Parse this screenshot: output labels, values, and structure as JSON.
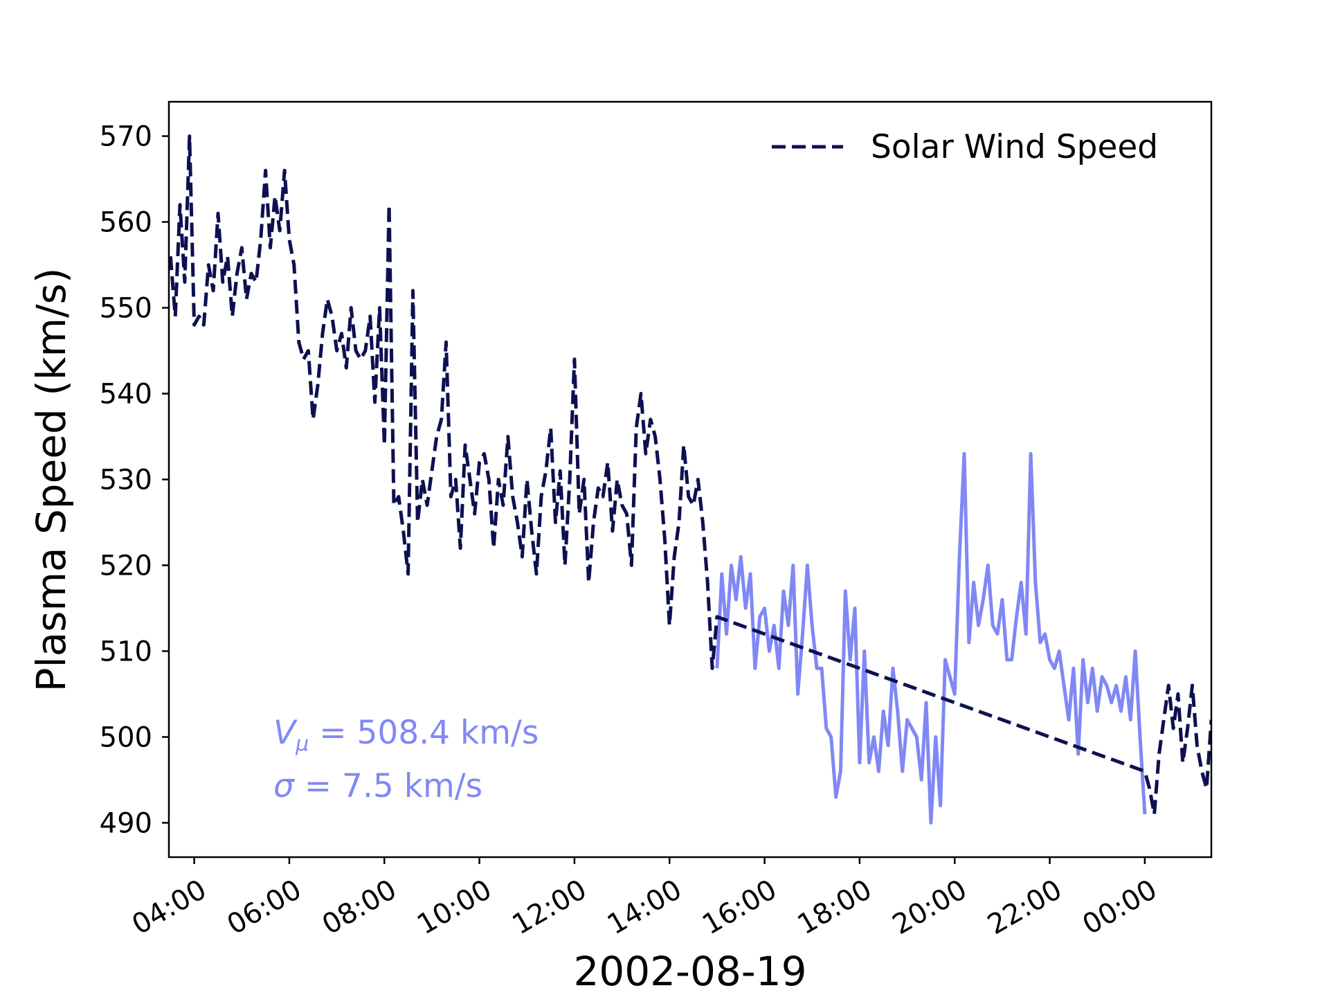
{
  "chart_data": {
    "type": "line",
    "xlabel": "2002-08-19",
    "ylabel": "Plasma Speed (km/s)",
    "ylim": [
      486,
      574
    ],
    "xlim": [
      "2002-08-19 03:28",
      "2002-08-20 01:24"
    ],
    "yticks": [
      490,
      500,
      510,
      520,
      530,
      540,
      550,
      560,
      570
    ],
    "xticks": [
      {
        "label": "04:00",
        "time": "2002-08-19 04:00"
      },
      {
        "label": "06:00",
        "time": "2002-08-19 06:00"
      },
      {
        "label": "08:00",
        "time": "2002-08-19 08:00"
      },
      {
        "label": "10:00",
        "time": "2002-08-19 10:00"
      },
      {
        "label": "12:00",
        "time": "2002-08-19 12:00"
      },
      {
        "label": "14:00",
        "time": "2002-08-19 14:00"
      },
      {
        "label": "16:00",
        "time": "2002-08-19 16:00"
      },
      {
        "label": "18:00",
        "time": "2002-08-19 18:00"
      },
      {
        "label": "20:00",
        "time": "2002-08-19 20:00"
      },
      {
        "label": "22:00",
        "time": "2002-08-19 22:00"
      },
      {
        "label": "00:00",
        "time": "2002-08-20 00:00"
      }
    ],
    "grid": false,
    "legend": {
      "placement": "top-right",
      "entries": [
        {
          "label": "Solar Wind Speed",
          "style": "dashed",
          "color": "#0d1050"
        }
      ]
    },
    "annotations": [
      "V_μ = 508.4 km/s",
      "σ = 7.5 km/s"
    ],
    "series": [
      {
        "name": "Solar Wind Speed",
        "style": "dashed",
        "color": "#0d1050",
        "x": [
          "2002-08-19 03:30",
          "2002-08-19 03:36",
          "2002-08-19 03:42",
          "2002-08-19 03:48",
          "2002-08-19 03:54",
          "2002-08-19 04:00",
          "2002-08-19 04:06",
          "2002-08-19 04:12",
          "2002-08-19 04:18",
          "2002-08-19 04:24",
          "2002-08-19 04:30",
          "2002-08-19 04:36",
          "2002-08-19 04:42",
          "2002-08-19 04:48",
          "2002-08-19 04:54",
          "2002-08-19 05:00",
          "2002-08-19 05:06",
          "2002-08-19 05:12",
          "2002-08-19 05:18",
          "2002-08-19 05:24",
          "2002-08-19 05:30",
          "2002-08-19 05:36",
          "2002-08-19 05:42",
          "2002-08-19 05:48",
          "2002-08-19 05:54",
          "2002-08-19 06:00",
          "2002-08-19 06:06",
          "2002-08-19 06:12",
          "2002-08-19 06:18",
          "2002-08-19 06:24",
          "2002-08-19 06:30",
          "2002-08-19 06:36",
          "2002-08-19 06:42",
          "2002-08-19 06:48",
          "2002-08-19 06:54",
          "2002-08-19 07:00",
          "2002-08-19 07:06",
          "2002-08-19 07:12",
          "2002-08-19 07:18",
          "2002-08-19 07:24",
          "2002-08-19 07:30",
          "2002-08-19 07:36",
          "2002-08-19 07:42",
          "2002-08-19 07:48",
          "2002-08-19 07:54",
          "2002-08-19 08:00",
          "2002-08-19 08:06",
          "2002-08-19 08:12",
          "2002-08-19 08:18",
          "2002-08-19 08:24",
          "2002-08-19 08:30",
          "2002-08-19 08:36",
          "2002-08-19 08:42",
          "2002-08-19 08:48",
          "2002-08-19 08:54",
          "2002-08-19 09:00",
          "2002-08-19 09:06",
          "2002-08-19 09:12",
          "2002-08-19 09:18",
          "2002-08-19 09:24",
          "2002-08-19 09:30",
          "2002-08-19 09:36",
          "2002-08-19 09:42",
          "2002-08-19 09:48",
          "2002-08-19 09:54",
          "2002-08-19 10:00",
          "2002-08-19 10:06",
          "2002-08-19 10:12",
          "2002-08-19 10:18",
          "2002-08-19 10:24",
          "2002-08-19 10:30",
          "2002-08-19 10:36",
          "2002-08-19 10:42",
          "2002-08-19 10:48",
          "2002-08-19 10:54",
          "2002-08-19 11:00",
          "2002-08-19 11:06",
          "2002-08-19 11:12",
          "2002-08-19 11:18",
          "2002-08-19 11:24",
          "2002-08-19 11:30",
          "2002-08-19 11:36",
          "2002-08-19 11:42",
          "2002-08-19 11:48",
          "2002-08-19 11:54",
          "2002-08-19 12:00",
          "2002-08-19 12:06",
          "2002-08-19 12:12",
          "2002-08-19 12:18",
          "2002-08-19 12:24",
          "2002-08-19 12:30",
          "2002-08-19 12:36",
          "2002-08-19 12:42",
          "2002-08-19 12:48",
          "2002-08-19 12:54",
          "2002-08-19 13:00",
          "2002-08-19 13:06",
          "2002-08-19 13:12",
          "2002-08-19 13:18",
          "2002-08-19 13:24",
          "2002-08-19 13:30",
          "2002-08-19 13:36",
          "2002-08-19 13:42",
          "2002-08-19 13:48",
          "2002-08-19 13:54",
          "2002-08-19 14:00",
          "2002-08-19 14:06",
          "2002-08-19 14:12",
          "2002-08-19 14:18",
          "2002-08-19 14:24",
          "2002-08-19 14:30",
          "2002-08-19 14:36",
          "2002-08-19 14:42",
          "2002-08-19 14:48",
          "2002-08-19 14:54",
          "2002-08-19 15:00",
          "2002-08-20 00:00",
          "2002-08-20 00:06",
          "2002-08-20 00:12",
          "2002-08-20 00:18",
          "2002-08-20 00:24",
          "2002-08-20 00:30",
          "2002-08-20 00:36",
          "2002-08-20 00:42",
          "2002-08-20 00:48",
          "2002-08-20 00:54",
          "2002-08-20 01:00",
          "2002-08-20 01:06",
          "2002-08-20 01:12",
          "2002-08-20 01:18",
          "2002-08-20 01:24"
        ],
        "y": [
          556,
          549,
          562,
          553,
          570,
          548,
          549,
          548,
          555,
          552,
          561,
          553,
          556,
          549,
          554,
          557,
          551,
          554,
          553,
          558,
          566,
          557,
          563,
          559,
          566,
          558,
          555,
          546,
          544,
          545,
          537,
          541,
          547,
          551,
          549,
          545,
          547,
          543,
          550,
          545,
          544,
          545,
          549,
          539,
          550,
          534,
          562,
          527,
          528,
          524,
          519,
          552,
          525,
          530,
          527,
          531,
          535,
          537,
          546,
          528,
          530,
          522,
          534,
          530,
          526,
          532,
          533,
          530,
          522,
          530,
          527,
          535,
          528,
          525,
          521,
          530,
          524,
          519,
          528,
          531,
          536,
          525,
          531,
          520,
          530,
          544,
          526,
          530,
          518,
          525,
          529,
          528,
          532,
          524,
          530,
          527,
          526,
          520,
          536,
          540,
          533,
          537,
          535,
          530,
          523,
          513,
          521,
          525,
          534,
          528,
          527,
          530,
          525,
          518,
          508,
          514,
          496,
          494,
          491,
          498,
          502,
          506,
          501,
          505,
          497,
          501,
          506,
          499,
          496,
          494,
          502
        ],
        "y_note": "sampled trace"
      },
      {
        "name": "",
        "style": "solid",
        "color": "#8088f5",
        "x": [
          "2002-08-19 15:00",
          "2002-08-19 15:06",
          "2002-08-19 15:12",
          "2002-08-19 15:18",
          "2002-08-19 15:24",
          "2002-08-19 15:30",
          "2002-08-19 15:36",
          "2002-08-19 15:42",
          "2002-08-19 15:48",
          "2002-08-19 15:54",
          "2002-08-19 16:00",
          "2002-08-19 16:06",
          "2002-08-19 16:12",
          "2002-08-19 16:18",
          "2002-08-19 16:24",
          "2002-08-19 16:30",
          "2002-08-19 16:36",
          "2002-08-19 16:42",
          "2002-08-19 16:48",
          "2002-08-19 16:54",
          "2002-08-19 17:00",
          "2002-08-19 17:06",
          "2002-08-19 17:12",
          "2002-08-19 17:18",
          "2002-08-19 17:24",
          "2002-08-19 17:30",
          "2002-08-19 17:36",
          "2002-08-19 17:42",
          "2002-08-19 17:48",
          "2002-08-19 17:54",
          "2002-08-19 18:00",
          "2002-08-19 18:06",
          "2002-08-19 18:12",
          "2002-08-19 18:18",
          "2002-08-19 18:24",
          "2002-08-19 18:30",
          "2002-08-19 18:36",
          "2002-08-19 18:42",
          "2002-08-19 18:48",
          "2002-08-19 18:54",
          "2002-08-19 19:00",
          "2002-08-19 19:06",
          "2002-08-19 19:12",
          "2002-08-19 19:18",
          "2002-08-19 19:24",
          "2002-08-19 19:30",
          "2002-08-19 19:36",
          "2002-08-19 19:42",
          "2002-08-19 19:48",
          "2002-08-19 19:54",
          "2002-08-19 20:00",
          "2002-08-19 20:06",
          "2002-08-19 20:12",
          "2002-08-19 20:18",
          "2002-08-19 20:24",
          "2002-08-19 20:30",
          "2002-08-19 20:36",
          "2002-08-19 20:42",
          "2002-08-19 20:48",
          "2002-08-19 20:54",
          "2002-08-19 21:00",
          "2002-08-19 21:06",
          "2002-08-19 21:12",
          "2002-08-19 21:18",
          "2002-08-19 21:24",
          "2002-08-19 21:30",
          "2002-08-19 21:36",
          "2002-08-19 21:42",
          "2002-08-19 21:48",
          "2002-08-19 21:54",
          "2002-08-19 22:00",
          "2002-08-19 22:06",
          "2002-08-19 22:12",
          "2002-08-19 22:18",
          "2002-08-19 22:24",
          "2002-08-19 22:30",
          "2002-08-19 22:36",
          "2002-08-19 22:42",
          "2002-08-19 22:48",
          "2002-08-19 22:54",
          "2002-08-19 23:00",
          "2002-08-19 23:06",
          "2002-08-19 23:12",
          "2002-08-19 23:18",
          "2002-08-19 23:24",
          "2002-08-19 23:30",
          "2002-08-19 23:36",
          "2002-08-19 23:42",
          "2002-08-19 23:48",
          "2002-08-19 23:54",
          "2002-08-20 00:00"
        ],
        "y": [
          508,
          519,
          512,
          520,
          516,
          521,
          515,
          519,
          508,
          514,
          515,
          510,
          513,
          508,
          517,
          513,
          520,
          505,
          512,
          520,
          513,
          508,
          508,
          501,
          500,
          493,
          496,
          517,
          509,
          515,
          497,
          510,
          497,
          500,
          496,
          503,
          499,
          508,
          503,
          496,
          502,
          501,
          500,
          495,
          504,
          490,
          500,
          492,
          509,
          507,
          505,
          521,
          533,
          511,
          518,
          513,
          516,
          520,
          513,
          512,
          516,
          509,
          509,
          514,
          518,
          512,
          533,
          518,
          511,
          512,
          509,
          508,
          510,
          506,
          502,
          508,
          498,
          509,
          504,
          508,
          503,
          507,
          506,
          504,
          506,
          503,
          507,
          502,
          510,
          500,
          491
        ]
      }
    ]
  },
  "annotation_1": {
    "var": "V",
    "sub": "μ",
    "rest": " = 508.4 km/s"
  },
  "annotation_2": {
    "var": "σ",
    "rest": " = 7.5 km/s"
  },
  "colors": {
    "dark_series": "#0d1050",
    "light_series": "#8088f5"
  }
}
